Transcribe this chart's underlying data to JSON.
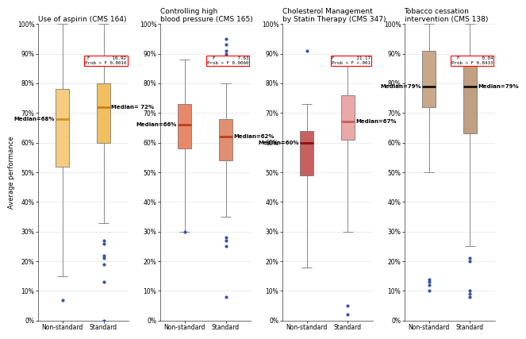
{
  "panels": [
    {
      "title": "Use of aspirin (CMS 164)",
      "f_line": "F        10.92",
      "p_line": "Prob > F 0.0010",
      "non_standard": {
        "median": 68,
        "q1": 52,
        "q3": 78,
        "whisker_low": 15,
        "whisker_high": 100,
        "outliers": [
          7
        ]
      },
      "standard": {
        "median": 72,
        "q1": 60,
        "q3": 80,
        "whisker_low": 33,
        "whisker_high": 100,
        "outliers": [
          0,
          13,
          19,
          21,
          22,
          26,
          27
        ]
      },
      "box_color_ns": "#F5CC80",
      "box_color_s": "#F0C060",
      "med_color_ns": "#D4901A",
      "med_color_s": "#C88010",
      "label_ns": "Median=68%",
      "label_s": "Median= 72%"
    },
    {
      "title": "Controlling high\nblood pressure (CMS 165)",
      "f_line": "F        7.63",
      "p_line": "Prob > F 0.0060",
      "non_standard": {
        "median": 66,
        "q1": 58,
        "q3": 73,
        "whisker_low": 30,
        "whisker_high": 88,
        "outliers": [
          30
        ]
      },
      "standard": {
        "median": 62,
        "q1": 54,
        "q3": 68,
        "whisker_low": 35,
        "whisker_high": 80,
        "outliers": [
          8,
          25,
          27,
          28,
          90,
          91,
          93,
          95
        ]
      },
      "box_color_ns": "#E8886A",
      "box_color_s": "#E09070",
      "med_color_ns": "#B84020",
      "med_color_s": "#B84020",
      "label_ns": "Median=66%",
      "label_s": "Median=62%"
    },
    {
      "title": "Cholesterol Management\nby Statin Therapy (CMS 347)",
      "f_line": "F        21.17",
      "p_line": "Prob > F <.001",
      "non_standard": {
        "median": 60,
        "q1": 49,
        "q3": 64,
        "whisker_low": 18,
        "whisker_high": 73,
        "outliers": [
          91
        ]
      },
      "standard": {
        "median": 67,
        "q1": 61,
        "q3": 76,
        "whisker_low": 30,
        "whisker_high": 89,
        "outliers": [
          2,
          5
        ]
      },
      "box_color_ns": "#C86060",
      "box_color_s": "#EAA8A8",
      "med_color_ns": "#8A1010",
      "med_color_s": "#C06060",
      "label_ns": "Median=60%",
      "label_s": "Median=67%"
    },
    {
      "title": "Tobacco cessation\nintervention (CMS 138)",
      "f_line": "F        0.04",
      "p_line": "Prob > F 0.8433",
      "non_standard": {
        "median": 79,
        "q1": 72,
        "q3": 91,
        "whisker_low": 50,
        "whisker_high": 100,
        "outliers": [
          10,
          12,
          13,
          14
        ]
      },
      "standard": {
        "median": 79,
        "q1": 63,
        "q3": 87,
        "whisker_low": 25,
        "whisker_high": 100,
        "outliers": [
          8,
          9,
          10,
          20,
          21
        ]
      },
      "box_color_ns": "#C8A888",
      "box_color_s": "#C0A080",
      "med_color_ns": "#101010",
      "med_color_s": "#101010",
      "label_ns": "Median=79%",
      "label_s": "Median=79%"
    }
  ],
  "ylabel": "Average performance",
  "xlabels": [
    "Non-standard",
    "Standard"
  ],
  "ylim": [
    0,
    100
  ],
  "yticks": [
    0,
    10,
    20,
    30,
    40,
    50,
    60,
    70,
    80,
    90,
    100
  ],
  "ytick_labels": [
    "0%",
    "10%",
    "20%",
    "30%",
    "40%",
    "50%",
    "60%",
    "70%",
    "80%",
    "90%",
    "100%"
  ],
  "outlier_color": "#3355AA",
  "whisker_color": "#888888",
  "bg_color": "#FFFFFF"
}
